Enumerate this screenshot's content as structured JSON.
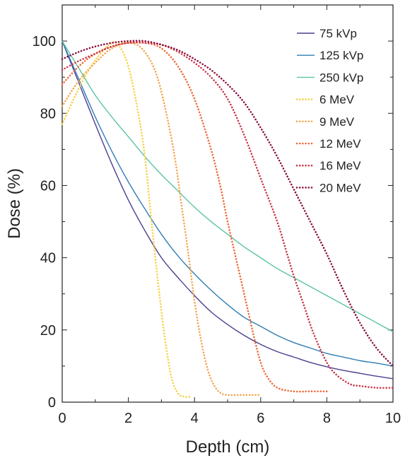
{
  "chart_data": {
    "type": "line",
    "title": "",
    "xlabel": "Depth (cm)",
    "ylabel": "Dose (%)",
    "xlim": [
      0,
      10
    ],
    "ylim": [
      0,
      110
    ],
    "xticks": [
      0,
      2,
      4,
      6,
      8,
      10
    ],
    "yticks": [
      0,
      20,
      40,
      60,
      80,
      100
    ],
    "grid": false,
    "legend": "top-right",
    "series": [
      {
        "name": "75 kVp",
        "color": "#4b3f8f",
        "style": "solid",
        "points": [
          [
            0,
            100
          ],
          [
            0.5,
            88.5
          ],
          [
            1,
            77
          ],
          [
            1.5,
            66
          ],
          [
            2,
            56
          ],
          [
            2.5,
            47.5
          ],
          [
            3,
            40
          ],
          [
            3.5,
            34.5
          ],
          [
            4,
            29.5
          ],
          [
            4.5,
            25
          ],
          [
            5,
            21.5
          ],
          [
            5.5,
            18.5
          ],
          [
            6,
            16
          ],
          [
            6.5,
            14
          ],
          [
            7,
            12.5
          ],
          [
            7.5,
            11
          ],
          [
            8,
            9.8
          ],
          [
            8.5,
            8.8
          ],
          [
            9,
            8
          ],
          [
            9.5,
            7.2
          ],
          [
            10,
            6.5
          ]
        ]
      },
      {
        "name": "125 kVp",
        "color": "#2f7db5",
        "style": "solid",
        "points": [
          [
            0,
            100
          ],
          [
            0.5,
            89.5
          ],
          [
            1,
            79
          ],
          [
            1.5,
            69.5
          ],
          [
            2,
            61
          ],
          [
            2.5,
            53.5
          ],
          [
            3,
            46.5
          ],
          [
            3.5,
            40.5
          ],
          [
            4,
            35.5
          ],
          [
            4.5,
            31
          ],
          [
            5,
            27
          ],
          [
            5.5,
            23.5
          ],
          [
            6,
            21
          ],
          [
            6.5,
            18.5
          ],
          [
            7,
            16.5
          ],
          [
            7.5,
            15
          ],
          [
            8,
            13.5
          ],
          [
            8.5,
            12.5
          ],
          [
            9,
            11.5
          ],
          [
            9.5,
            10.8
          ],
          [
            10,
            10
          ]
        ]
      },
      {
        "name": "250 kVp",
        "color": "#5cc3a2",
        "style": "solid",
        "points": [
          [
            0,
            100
          ],
          [
            0.5,
            92.5
          ],
          [
            1,
            85
          ],
          [
            1.5,
            79
          ],
          [
            2,
            73.5
          ],
          [
            2.5,
            68
          ],
          [
            3,
            63
          ],
          [
            3.5,
            58.5
          ],
          [
            4,
            54
          ],
          [
            4.5,
            50
          ],
          [
            5,
            46.5
          ],
          [
            5.5,
            43
          ],
          [
            6,
            40
          ],
          [
            6.5,
            37
          ],
          [
            7,
            34.5
          ],
          [
            7.5,
            32
          ],
          [
            8,
            29.5
          ],
          [
            8.5,
            27
          ],
          [
            9,
            24.5
          ],
          [
            9.5,
            22
          ],
          [
            10,
            19.5
          ]
        ]
      },
      {
        "name": "6 MeV",
        "color": "#f5d246",
        "style": "dotted",
        "points": [
          [
            0,
            77
          ],
          [
            0.4,
            85
          ],
          [
            0.8,
            92
          ],
          [
            1.2,
            97
          ],
          [
            1.5,
            99.5
          ],
          [
            1.7,
            99
          ],
          [
            2,
            93
          ],
          [
            2.3,
            80
          ],
          [
            2.5,
            68
          ],
          [
            2.7,
            50
          ],
          [
            2.9,
            33
          ],
          [
            3.1,
            18
          ],
          [
            3.3,
            7
          ],
          [
            3.5,
            2.5
          ],
          [
            3.7,
            1.5
          ],
          [
            3.9,
            1.5
          ]
        ]
      },
      {
        "name": "9 MeV",
        "color": "#f5a650",
        "style": "dotted",
        "points": [
          [
            0,
            82
          ],
          [
            0.5,
            89
          ],
          [
            1,
            94
          ],
          [
            1.5,
            98
          ],
          [
            2,
            99.5
          ],
          [
            2.4,
            98
          ],
          [
            2.8,
            92
          ],
          [
            3.1,
            82
          ],
          [
            3.4,
            68
          ],
          [
            3.6,
            55
          ],
          [
            3.8,
            42
          ],
          [
            4,
            28
          ],
          [
            4.2,
            17
          ],
          [
            4.4,
            9
          ],
          [
            4.6,
            4.5
          ],
          [
            4.8,
            2.5
          ],
          [
            5,
            2
          ],
          [
            5.5,
            2
          ],
          [
            6,
            2
          ]
        ]
      },
      {
        "name": "12 MeV",
        "color": "#ee6a3a",
        "style": "dotted",
        "points": [
          [
            0,
            88
          ],
          [
            0.5,
            93
          ],
          [
            1,
            96.5
          ],
          [
            1.5,
            98.5
          ],
          [
            2,
            99.5
          ],
          [
            2.5,
            99.5
          ],
          [
            3,
            98
          ],
          [
            3.5,
            93
          ],
          [
            4,
            84
          ],
          [
            4.5,
            70
          ],
          [
            4.8,
            59
          ],
          [
            5,
            50
          ],
          [
            5.3,
            38
          ],
          [
            5.6,
            26
          ],
          [
            5.8,
            18
          ],
          [
            6,
            11
          ],
          [
            6.2,
            7
          ],
          [
            6.5,
            4
          ],
          [
            7,
            3
          ],
          [
            7.5,
            3
          ],
          [
            8,
            3
          ]
        ]
      },
      {
        "name": "16 MeV",
        "color": "#c83a4b",
        "style": "dotted",
        "points": [
          [
            0,
            92
          ],
          [
            0.5,
            94.5
          ],
          [
            1,
            96.5
          ],
          [
            1.5,
            98.5
          ],
          [
            2,
            99.5
          ],
          [
            2.5,
            99.5
          ],
          [
            3,
            99
          ],
          [
            3.5,
            97
          ],
          [
            4,
            94
          ],
          [
            4.5,
            90
          ],
          [
            5,
            84
          ],
          [
            5.5,
            74
          ],
          [
            6,
            62
          ],
          [
            6.5,
            50
          ],
          [
            6.8,
            41
          ],
          [
            7,
            35
          ],
          [
            7.3,
            27
          ],
          [
            7.6,
            19
          ],
          [
            8,
            11
          ],
          [
            8.3,
            7.5
          ],
          [
            8.7,
            5
          ],
          [
            9,
            4.5
          ],
          [
            9.5,
            4
          ],
          [
            10,
            4
          ]
        ]
      },
      {
        "name": "20 MeV",
        "color": "#8b1040",
        "style": "dotted",
        "points": [
          [
            0,
            95
          ],
          [
            0.5,
            97
          ],
          [
            1,
            98.5
          ],
          [
            1.5,
            99.5
          ],
          [
            2,
            100
          ],
          [
            2.5,
            100
          ],
          [
            3,
            99
          ],
          [
            3.5,
            97.5
          ],
          [
            4,
            95
          ],
          [
            4.5,
            92
          ],
          [
            5,
            88
          ],
          [
            5.5,
            83
          ],
          [
            6,
            76
          ],
          [
            6.5,
            68
          ],
          [
            7,
            59
          ],
          [
            7.5,
            50
          ],
          [
            8,
            41
          ],
          [
            8.5,
            31
          ],
          [
            9,
            22
          ],
          [
            9.5,
            15
          ],
          [
            10,
            10
          ]
        ]
      }
    ]
  }
}
